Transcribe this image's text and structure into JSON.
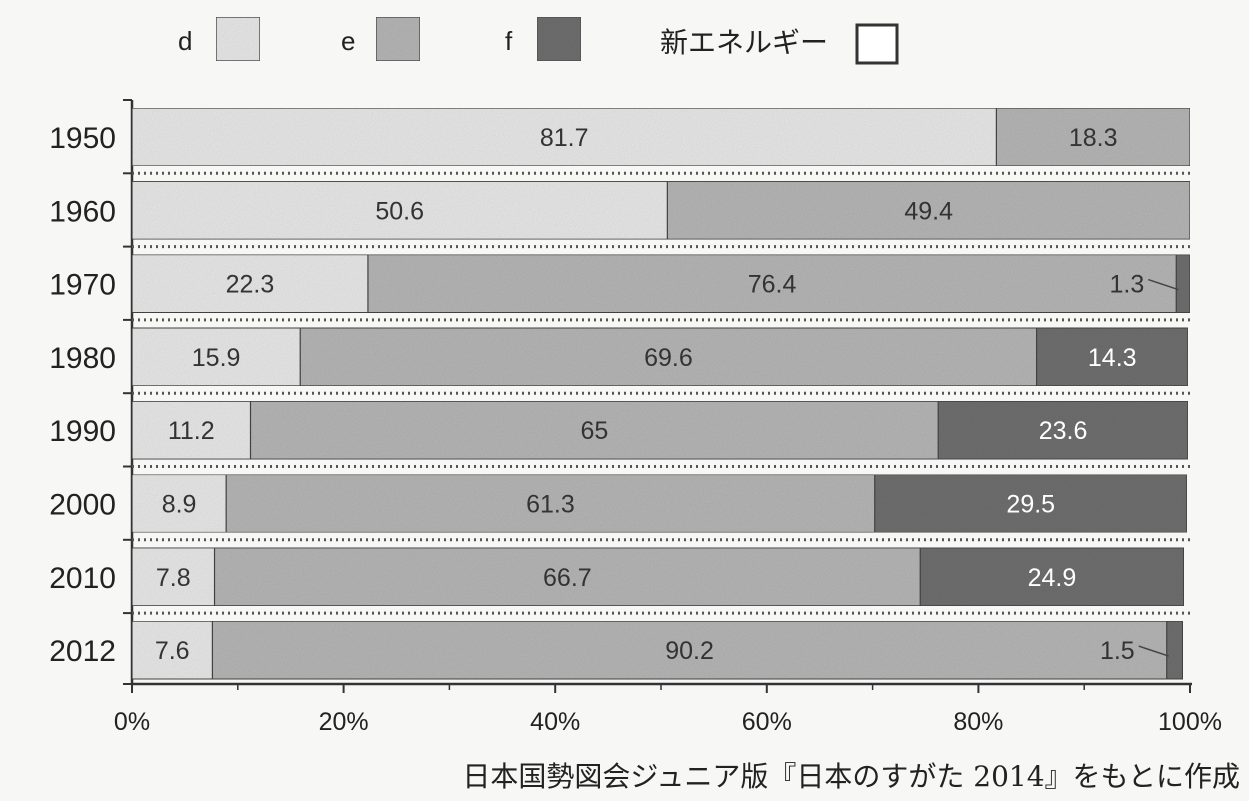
{
  "chart_data": {
    "type": "bar",
    "orientation": "horizontal",
    "stacked": true,
    "percent": true,
    "categories": [
      "1950",
      "1960",
      "1970",
      "1980",
      "1990",
      "2000",
      "2010",
      "2012"
    ],
    "series": [
      {
        "name": "d",
        "values": [
          81.7,
          50.6,
          22.3,
          15.9,
          11.2,
          8.9,
          7.8,
          7.6
        ],
        "color": "#e6e6e6",
        "label_color": "#333333"
      },
      {
        "name": "e",
        "values": [
          18.3,
          49.4,
          76.4,
          69.6,
          65,
          61.3,
          66.7,
          90.2
        ],
        "color": "#b4b4b4",
        "label_color": "#333333"
      },
      {
        "name": "f",
        "values": [
          0,
          0,
          1.3,
          14.3,
          23.6,
          29.5,
          24.9,
          1.5
        ],
        "color": "#6e6e6e",
        "label_color": "#ffffff"
      },
      {
        "name": "新エネルギー",
        "values": [
          0,
          0,
          0,
          0,
          0,
          0,
          0,
          0
        ],
        "color": "#ffffff",
        "label_color": "#333333"
      }
    ],
    "data_labels": [
      [
        "81.7",
        "18.3",
        "",
        ""
      ],
      [
        "50.6",
        "49.4",
        "",
        ""
      ],
      [
        "22.3",
        "76.4",
        "1.3",
        ""
      ],
      [
        "15.9",
        "69.6",
        "14.3",
        ""
      ],
      [
        "11.2",
        "65",
        "23.6",
        ""
      ],
      [
        "8.9",
        "61.3",
        "29.5",
        ""
      ],
      [
        "7.8",
        "66.7",
        "24.9",
        ""
      ],
      [
        "7.6",
        "90.2",
        "1.5",
        ""
      ]
    ],
    "x_ticks": [
      "0%",
      "20%",
      "40%",
      "60%",
      "80%",
      "100%"
    ],
    "xlim": [
      0,
      100
    ],
    "legend_position": "top",
    "grid": false
  },
  "source_note": "日本国勢図会ジュニア版『日本のすがた 2014』をもとに作成"
}
